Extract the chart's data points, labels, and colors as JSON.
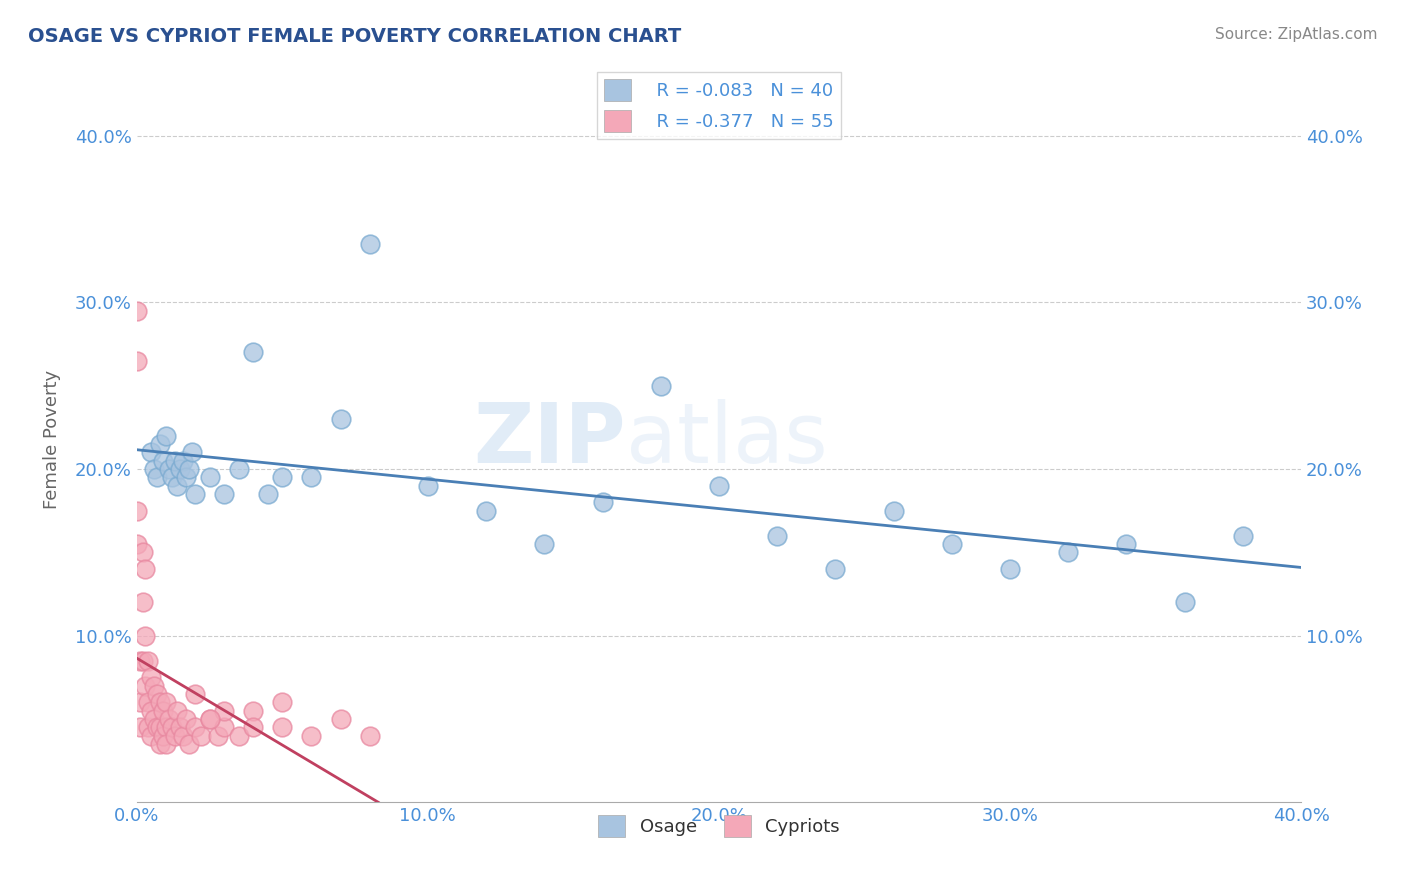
{
  "title": "OSAGE VS CYPRIOT FEMALE POVERTY CORRELATION CHART",
  "source": "Source: ZipAtlas.com",
  "xlabel": "",
  "ylabel": "Female Poverty",
  "xlim": [
    0.0,
    0.4
  ],
  "ylim": [
    0.0,
    0.435
  ],
  "xticks": [
    0.0,
    0.1,
    0.2,
    0.3,
    0.4
  ],
  "yticks": [
    0.0,
    0.1,
    0.2,
    0.3,
    0.4
  ],
  "xticklabels": [
    "0.0%",
    "10.0%",
    "20.0%",
    "30.0%",
    "40.0%"
  ],
  "yticklabels": [
    "",
    "10.0%",
    "20.0%",
    "30.0%",
    "40.0%"
  ],
  "osage_color": "#a8c4e0",
  "cypriot_color": "#f4a8b8",
  "osage_edge_color": "#7aaad0",
  "cypriot_edge_color": "#e888a0",
  "osage_line_color": "#4a7fb5",
  "cypriot_line_color": "#c04060",
  "background_color": "#ffffff",
  "grid_color": "#cccccc",
  "watermark_text": "ZIPatlas",
  "legend_r_osage": "R = -0.083",
  "legend_n_osage": "N = 40",
  "legend_r_cypriot": "R = -0.377",
  "legend_n_cypriot": "N = 55",
  "legend_label_osage": "Osage",
  "legend_label_cypriot": "Cypriots",
  "title_color": "#2a5090",
  "tick_color": "#4a90d9",
  "legend_value_color": "#4a90d9",
  "osage_x": [
    0.005,
    0.006,
    0.007,
    0.008,
    0.009,
    0.01,
    0.011,
    0.012,
    0.013,
    0.014,
    0.015,
    0.016,
    0.017,
    0.018,
    0.019,
    0.02,
    0.025,
    0.03,
    0.035,
    0.04,
    0.045,
    0.05,
    0.06,
    0.07,
    0.08,
    0.1,
    0.12,
    0.14,
    0.16,
    0.18,
    0.2,
    0.22,
    0.24,
    0.26,
    0.28,
    0.3,
    0.32,
    0.34,
    0.36,
    0.38
  ],
  "osage_y": [
    0.21,
    0.2,
    0.195,
    0.215,
    0.205,
    0.22,
    0.2,
    0.195,
    0.205,
    0.19,
    0.2,
    0.205,
    0.195,
    0.2,
    0.21,
    0.185,
    0.195,
    0.185,
    0.2,
    0.27,
    0.185,
    0.195,
    0.195,
    0.23,
    0.335,
    0.19,
    0.175,
    0.155,
    0.18,
    0.25,
    0.19,
    0.16,
    0.14,
    0.175,
    0.155,
    0.14,
    0.15,
    0.155,
    0.12,
    0.16
  ],
  "cypriot_x": [
    0.0,
    0.0,
    0.0,
    0.0,
    0.001,
    0.001,
    0.001,
    0.002,
    0.002,
    0.002,
    0.003,
    0.003,
    0.003,
    0.004,
    0.004,
    0.004,
    0.005,
    0.005,
    0.005,
    0.006,
    0.006,
    0.007,
    0.007,
    0.008,
    0.008,
    0.008,
    0.009,
    0.009,
    0.01,
    0.01,
    0.01,
    0.011,
    0.012,
    0.013,
    0.014,
    0.015,
    0.016,
    0.017,
    0.018,
    0.02,
    0.022,
    0.025,
    0.028,
    0.03,
    0.035,
    0.04,
    0.05,
    0.06,
    0.07,
    0.08,
    0.05,
    0.04,
    0.03,
    0.02,
    0.025
  ],
  "cypriot_y": [
    0.295,
    0.265,
    0.175,
    0.155,
    0.085,
    0.06,
    0.045,
    0.15,
    0.12,
    0.085,
    0.14,
    0.1,
    0.07,
    0.085,
    0.06,
    0.045,
    0.075,
    0.055,
    0.04,
    0.07,
    0.05,
    0.065,
    0.045,
    0.06,
    0.045,
    0.035,
    0.055,
    0.04,
    0.06,
    0.045,
    0.035,
    0.05,
    0.045,
    0.04,
    0.055,
    0.045,
    0.04,
    0.05,
    0.035,
    0.045,
    0.04,
    0.05,
    0.04,
    0.045,
    0.04,
    0.055,
    0.045,
    0.04,
    0.05,
    0.04,
    0.06,
    0.045,
    0.055,
    0.065,
    0.05
  ]
}
